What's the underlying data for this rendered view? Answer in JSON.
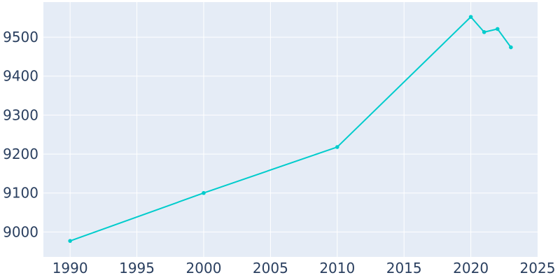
{
  "chart_data": {
    "type": "line",
    "title": "",
    "xlabel": "",
    "ylabel": "",
    "x": [
      1990,
      2000,
      2010,
      2020,
      2021,
      2022,
      2023
    ],
    "series": [
      {
        "values": [
          8977,
          9100,
          9218,
          9552,
          9513,
          9521,
          9474
        ]
      }
    ],
    "xlim": [
      1988,
      2025
    ],
    "ylim": [
      8936,
      9590
    ],
    "x_ticks": [
      1990,
      1995,
      2000,
      2005,
      2010,
      2015,
      2020,
      2025
    ],
    "y_ticks": [
      9000,
      9100,
      9200,
      9300,
      9400,
      9500
    ],
    "x_tick_labels": [
      "1990",
      "1995",
      "2000",
      "2005",
      "2010",
      "2015",
      "2020",
      "2025"
    ],
    "y_tick_labels": [
      "9000",
      "9100",
      "9200",
      "9300",
      "9400",
      "9500"
    ],
    "grid": true,
    "legend": "none",
    "colors": {
      "plot_background": "#e5ecf6",
      "grid": "#ffffff",
      "line": "#00cccc",
      "tick_text": "#2a3f5f"
    }
  }
}
